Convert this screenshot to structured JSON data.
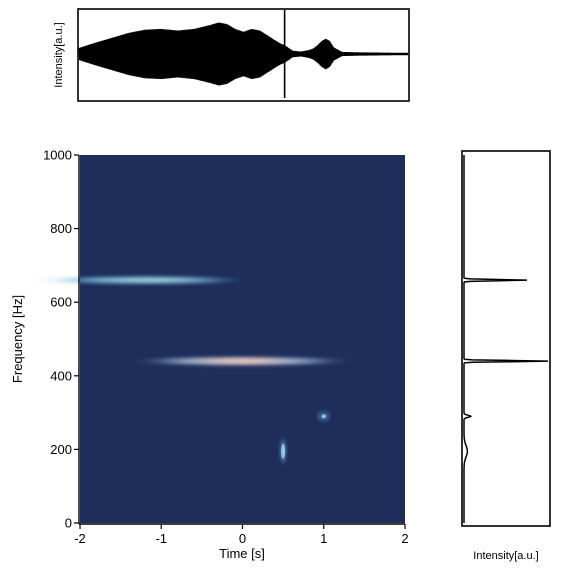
{
  "chart_data": [
    {
      "type": "line",
      "panel": "time-trace",
      "title": "",
      "xlabel": "",
      "ylabel": "Intensity[a.u.]",
      "xlim": [
        -2,
        2
      ],
      "grid": false,
      "envelope": {
        "x": [
          -2.0,
          -1.8,
          -1.6,
          -1.4,
          -1.2,
          -1.0,
          -0.8,
          -0.6,
          -0.4,
          -0.3,
          -0.2,
          -0.1,
          0.0,
          0.1,
          0.2,
          0.3,
          0.4,
          0.45,
          0.5,
          0.55,
          0.6,
          0.7,
          0.8,
          0.85,
          0.9,
          0.95,
          1.0,
          1.05,
          1.1,
          1.2,
          1.4,
          1.6,
          1.8,
          2.0
        ],
        "amplitude": [
          0.15,
          0.28,
          0.4,
          0.52,
          0.6,
          0.62,
          0.58,
          0.62,
          0.72,
          0.78,
          0.74,
          0.62,
          0.55,
          0.62,
          0.58,
          0.45,
          0.32,
          0.26,
          0.22,
          0.15,
          0.08,
          0.06,
          0.1,
          0.14,
          0.22,
          0.32,
          0.38,
          0.32,
          0.16,
          0.05,
          0.04,
          0.035,
          0.03,
          0.03
        ]
      },
      "spike": {
        "x": 0.5,
        "amplitude": 1.0
      }
    },
    {
      "type": "heatmap",
      "panel": "spectrogram",
      "title": "",
      "xlabel": "Time [s]",
      "ylabel": "Frequency [Hz]",
      "xlim": [
        -2,
        2
      ],
      "ylim": [
        0,
        1000
      ],
      "x_ticks": [
        "-2",
        "-1",
        "0",
        "1",
        "2"
      ],
      "y_ticks": [
        "0",
        "200",
        "400",
        "600",
        "800",
        "1000"
      ],
      "background_color": "#1e2d5a",
      "grid": false,
      "components": [
        {
          "t_center": -1.2,
          "t_halfwidth": 1.1,
          "freq": 660,
          "freq_halfwidth": 8,
          "intensity": 0.55
        },
        {
          "t_center": 0.0,
          "t_halfwidth": 1.2,
          "freq": 440,
          "freq_halfwidth": 9,
          "intensity": 1.0
        },
        {
          "t_center": 0.5,
          "t_halfwidth": 0.03,
          "freq": 195,
          "freq_halfwidth": 30,
          "intensity": 0.35
        },
        {
          "t_center": 1.0,
          "t_halfwidth": 0.08,
          "freq": 290,
          "freq_halfwidth": 8,
          "intensity": 0.45
        }
      ]
    },
    {
      "type": "line",
      "panel": "spectrum",
      "title": "",
      "xlabel": "Intensity[a.u.]",
      "ylabel": "",
      "ylim": [
        0,
        1000
      ],
      "grid": false,
      "peaks": [
        {
          "freq": 660,
          "intensity": 0.75
        },
        {
          "freq": 440,
          "intensity": 1.0
        },
        {
          "freq": 290,
          "intensity": 0.08
        },
        {
          "freq": 195,
          "intensity": 0.04
        }
      ]
    }
  ]
}
